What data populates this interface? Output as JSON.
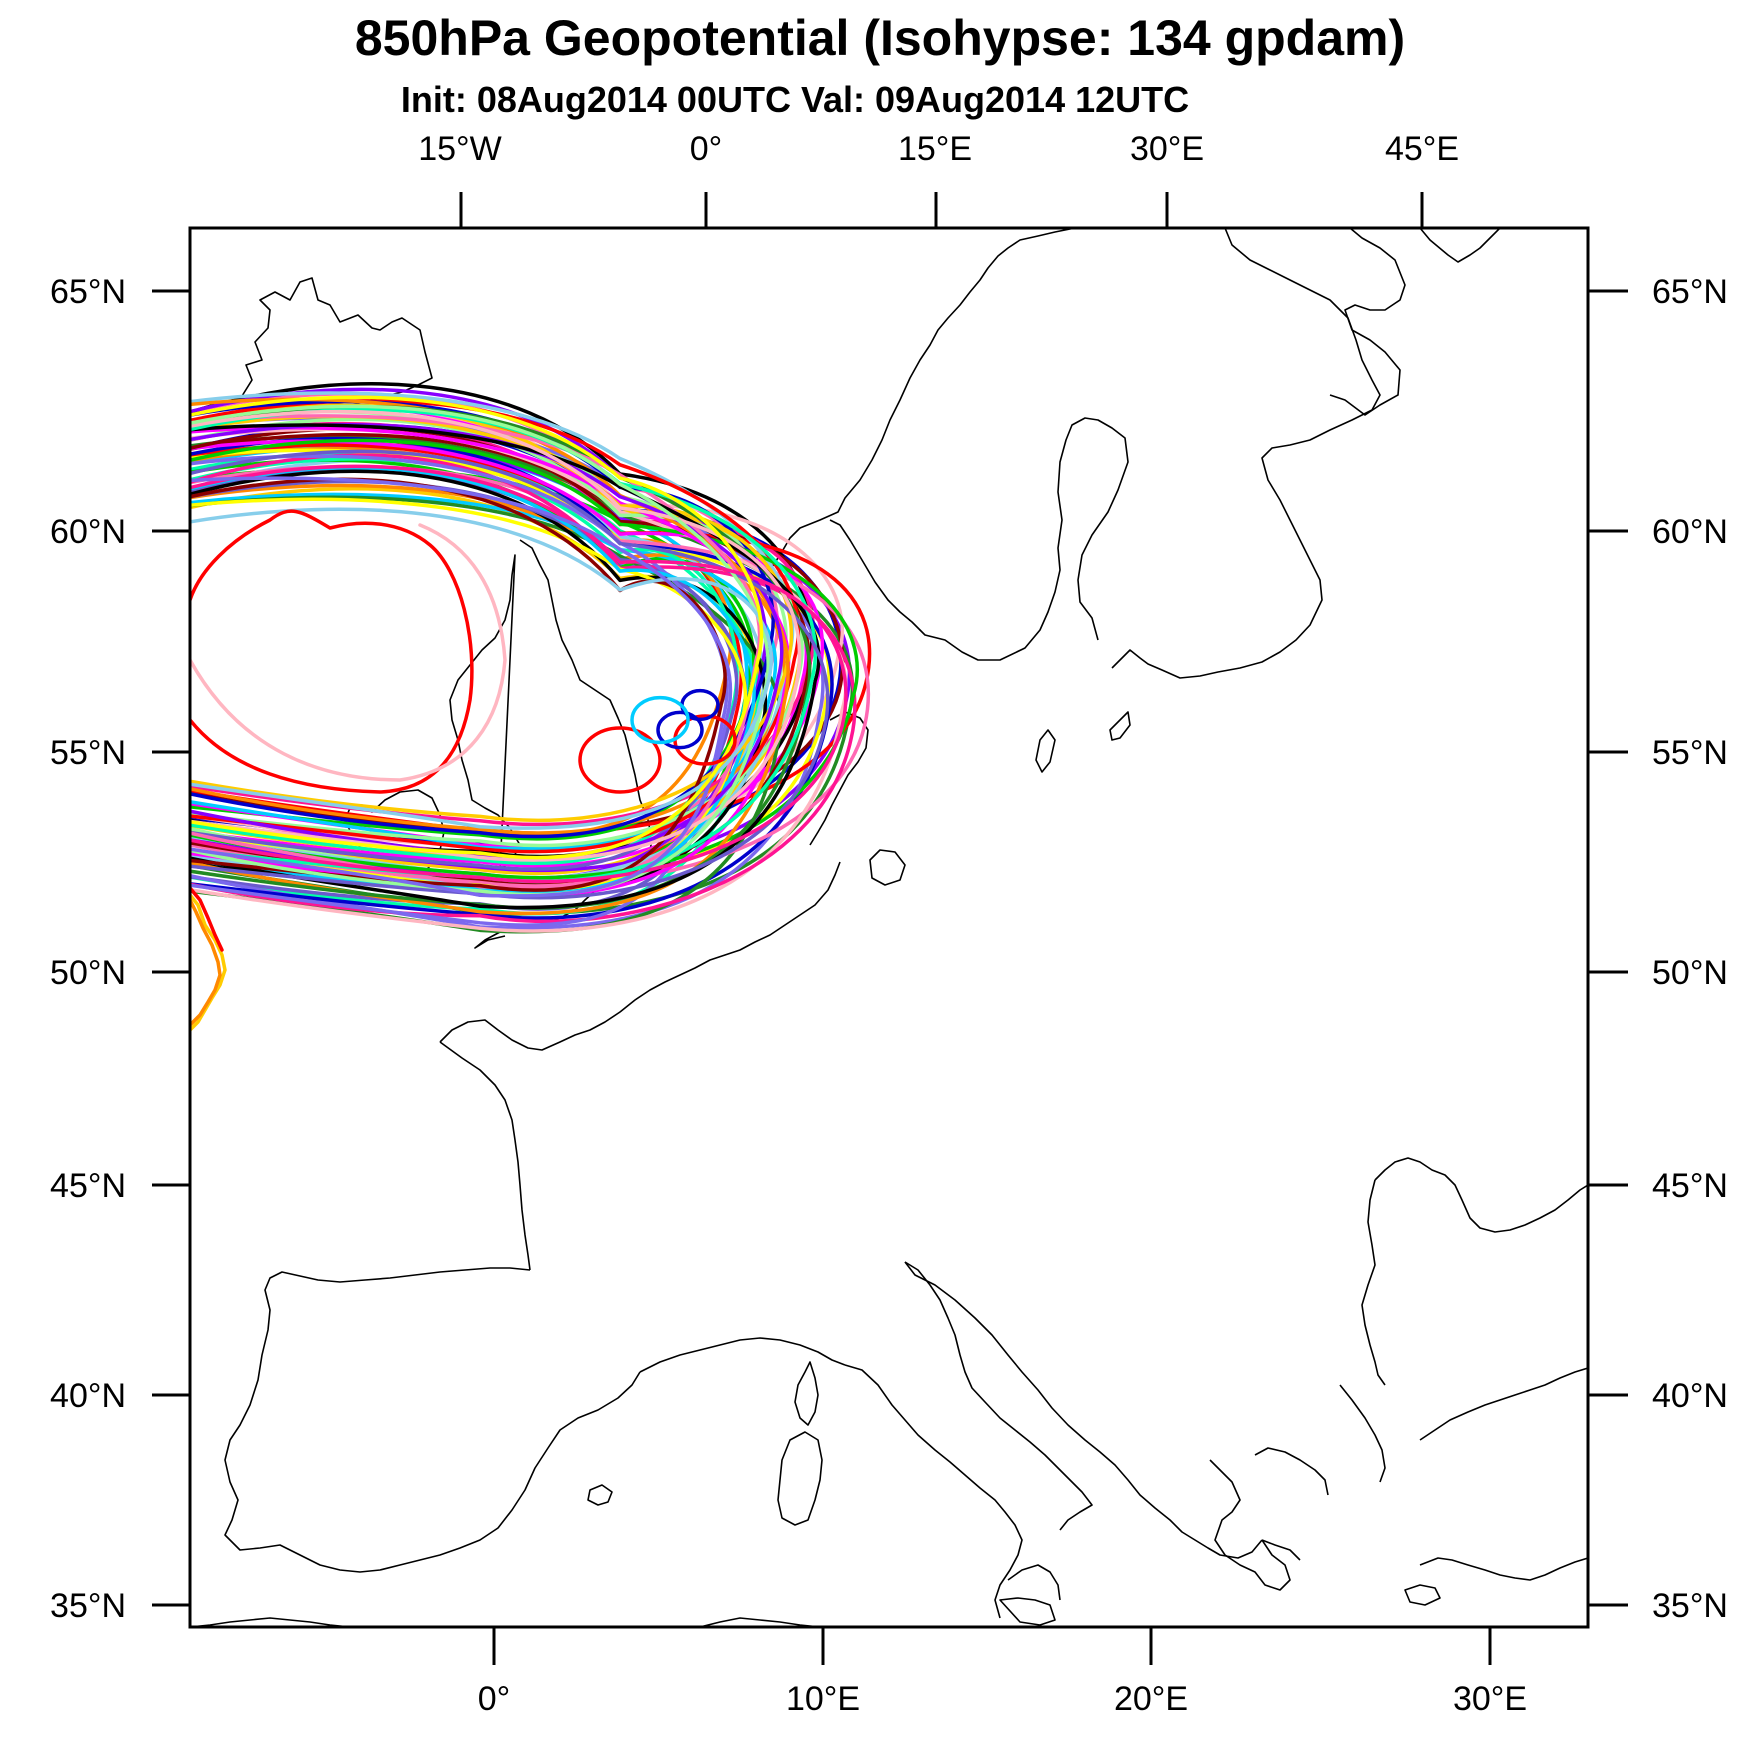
{
  "title": "850hPa Geopotential (Isohypse: 134 gpdam)",
  "subtitle": "Init: 08Aug2014 00UTC Val: 09Aug2014 12UTC",
  "axes": {
    "top_labels": [
      "15°W",
      "0°",
      "15°E",
      "30°E",
      "45°E"
    ],
    "bottom_labels": [
      "0°",
      "10°E",
      "20°E",
      "30°E"
    ],
    "left_labels": [
      "65°N",
      "60°N",
      "55°N",
      "50°N",
      "45°N",
      "40°N",
      "35°N"
    ],
    "right_labels": [
      "65°N",
      "60°N",
      "55°N",
      "50°N",
      "45°N",
      "40°N",
      "35°N"
    ]
  },
  "colors": {
    "ensemble_members": [
      "#ff0000",
      "#0000cc",
      "#00cc00",
      "#ff00ff",
      "#00ccff",
      "#ffcc00",
      "#ff8800",
      "#8800ff",
      "#228b22",
      "#ff69b4",
      "#000000",
      "#8b0000",
      "#00ffaa",
      "#6a5acd",
      "#ffb6c1",
      "#98fb98",
      "#87ceeb",
      "#ff1493",
      "#7b68ee",
      "#ffff00"
    ],
    "coastline": "#000000",
    "frame": "#000000"
  }
}
